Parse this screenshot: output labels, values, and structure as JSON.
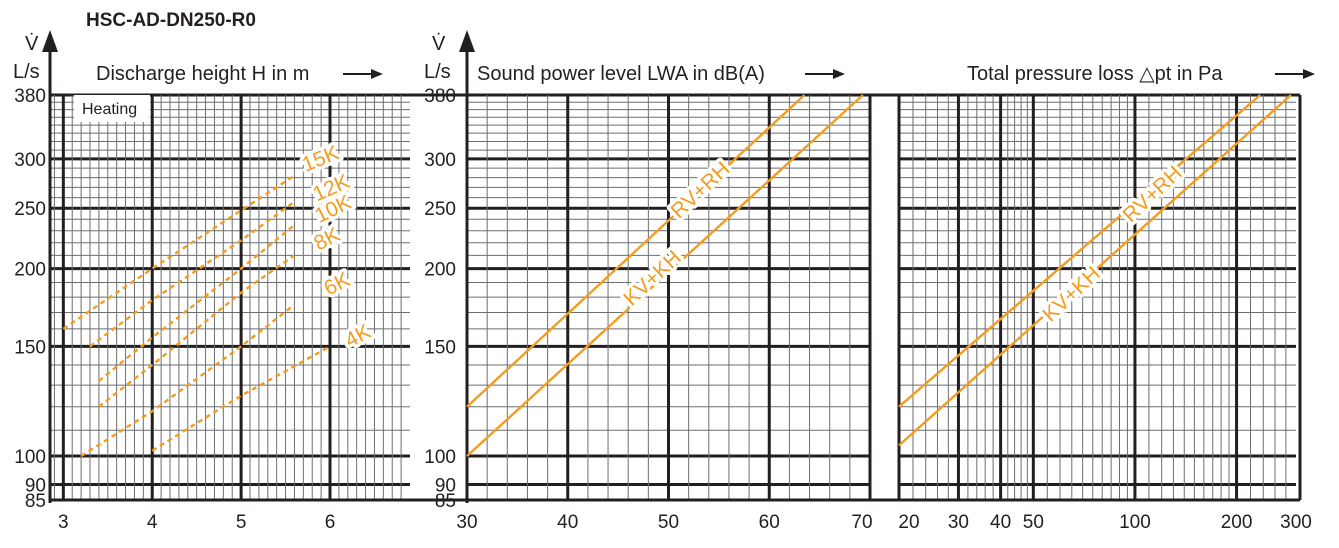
{
  "title": "HSC-AD-DN250-R0",
  "y_axis": {
    "symbol": "V̇",
    "unit": "L/s",
    "ticks": [
      85,
      90,
      100,
      150,
      200,
      250,
      300,
      380
    ],
    "ylim": [
      85,
      380
    ],
    "scale": "log"
  },
  "accent_color": "#f39c1f",
  "chart_data": [
    {
      "type": "line",
      "title": "Discharge height H in m",
      "xlabel": "Discharge height H in m",
      "ylabel": "L/s",
      "annotation": "Heating",
      "xscale": "linear",
      "xlim": [
        2.85,
        6.9
      ],
      "xticks": [
        3,
        4,
        5,
        6
      ],
      "line_style": "dashed",
      "series": [
        {
          "name": "15K",
          "x": [
            3.0,
            4.0,
            5.0,
            5.6
          ],
          "y": [
            160,
            200,
            248,
            282
          ]
        },
        {
          "name": "12K",
          "x": [
            3.3,
            4.0,
            5.0,
            5.6
          ],
          "y": [
            150,
            178,
            222,
            256
          ]
        },
        {
          "name": "10K",
          "x": [
            3.4,
            4.0,
            5.0,
            5.6
          ],
          "y": [
            132,
            155,
            200,
            235
          ]
        },
        {
          "name": "8K",
          "x": [
            3.4,
            4.0,
            5.0,
            5.6
          ],
          "y": [
            120,
            140,
            183,
            210
          ]
        },
        {
          "name": "6K",
          "x": [
            3.2,
            4.0,
            5.0,
            5.6
          ],
          "y": [
            100,
            118,
            150,
            175
          ]
        },
        {
          "name": "4K",
          "x": [
            4.0,
            5.0,
            6.0
          ],
          "y": [
            102,
            125,
            150
          ]
        }
      ]
    },
    {
      "type": "line",
      "title": "Sound power level LWA in dB(A)",
      "xlabel": "Sound power level LWA in dB(A)",
      "ylabel": "L/s",
      "xscale": "linear",
      "xlim": [
        30,
        70
      ],
      "xticks": [
        30,
        40,
        50,
        60,
        70
      ],
      "line_style": "solid",
      "series": [
        {
          "name": "RV+RH",
          "x": [
            30,
            63.5
          ],
          "y": [
            120,
            380
          ]
        },
        {
          "name": "KV+KH",
          "x": [
            30,
            69.3
          ],
          "y": [
            100,
            380
          ]
        }
      ]
    },
    {
      "type": "line",
      "title": "Total pressure loss △pt in Pa",
      "xlabel": "Total pressure loss △pt in Pa",
      "ylabel": "L/s",
      "xscale": "log",
      "xlim": [
        20,
        300
      ],
      "xticks": [
        20,
        30,
        40,
        50,
        100,
        200,
        300
      ],
      "line_style": "solid",
      "series": [
        {
          "name": "RV+RH",
          "x": [
            20,
            235
          ],
          "y": [
            120,
            380
          ]
        },
        {
          "name": "KV+KH",
          "x": [
            20,
            290
          ],
          "y": [
            104,
            380
          ]
        }
      ]
    }
  ]
}
